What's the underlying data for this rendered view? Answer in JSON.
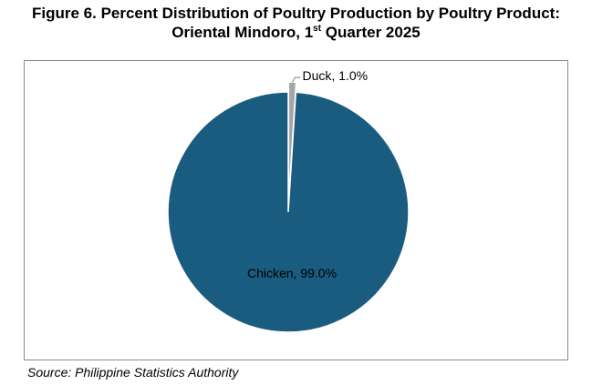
{
  "title": {
    "line1": "Figure 6. Percent Distribution of Poultry Production by Poultry Product:",
    "line2_prefix": "Oriental Mindoro, 1",
    "line2_sup": "st",
    "line2_suffix": " Quarter 2025"
  },
  "source": "Source: Philippine Statistics Authority",
  "chart_data": {
    "type": "pie",
    "title": "Figure 6. Percent Distribution of Poultry Production by Poultry Product: Oriental Mindoro, 1st Quarter 2025",
    "categories": [
      "Duck",
      "Chicken"
    ],
    "values": [
      1.0,
      99.0
    ],
    "unit": "%",
    "data_labels": [
      "Duck, 1.0%",
      "Chicken, 99.0%"
    ],
    "colors": [
      "#a6a6a6",
      "#1a5c80"
    ],
    "legend": "none",
    "exploded": [
      "Duck"
    ]
  }
}
